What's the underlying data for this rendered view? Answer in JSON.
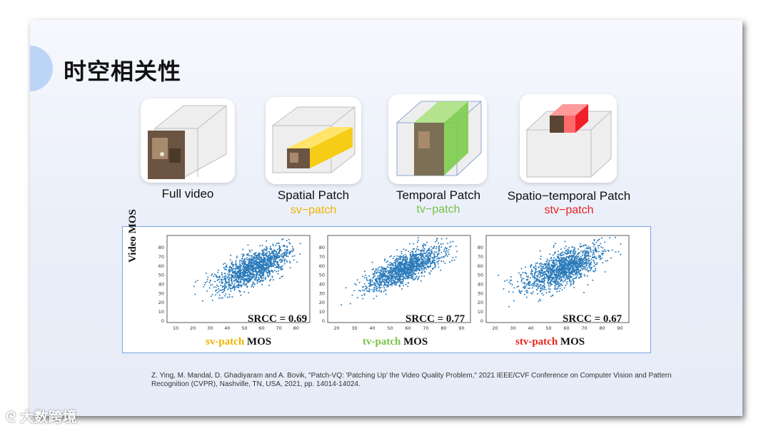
{
  "title": "时空相关性",
  "patches": [
    {
      "caption": "Full video",
      "sub": ""
    },
    {
      "caption": "Spatial Patch",
      "sub": "sv−patch",
      "sub_color": "#f0b400"
    },
    {
      "caption": "Temporal Patch",
      "sub": "tv−patch",
      "sub_color": "#7ac143"
    },
    {
      "caption": "Spatio−temporal Patch",
      "sub": "stv−patch",
      "sub_color": "#e8231d"
    }
  ],
  "chart_data": [
    {
      "type": "scatter",
      "ylabel": "Video MOS",
      "xlabel_prefix": "sv-patch",
      "xlabel_suffix": "MOS",
      "xlabel_color": "#f0b400",
      "srcc": "SRCC = 0.69",
      "xticks": [
        "10",
        "20",
        "30",
        "40",
        "50",
        "60",
        "70",
        "80"
      ],
      "xlim": [
        5,
        88
      ],
      "yticks": [
        "0",
        "10",
        "20",
        "30",
        "40",
        "50",
        "60",
        "70",
        "80"
      ],
      "ylim": [
        -2,
        93
      ],
      "color": "#2b7bbb",
      "r": 0.69
    },
    {
      "type": "scatter",
      "ylabel": "",
      "xlabel_prefix": "tv-patch",
      "xlabel_suffix": "MOS",
      "xlabel_color": "#7ac143",
      "srcc": "SRCC = 0.77",
      "xticks": [
        "20",
        "30",
        "40",
        "50",
        "60",
        "70",
        "80",
        "90"
      ],
      "xlim": [
        15,
        95
      ],
      "yticks": [
        "0",
        "10",
        "20",
        "30",
        "40",
        "50",
        "60",
        "70",
        "80"
      ],
      "ylim": [
        -2,
        93
      ],
      "color": "#2b7bbb",
      "r": 0.77
    },
    {
      "type": "scatter",
      "ylabel": "",
      "xlabel_prefix": "stv-patch",
      "xlabel_suffix": "MOS",
      "xlabel_color": "#e8231d",
      "srcc": "SRCC = 0.67",
      "xticks": [
        "20",
        "30",
        "40",
        "50",
        "60",
        "70",
        "80",
        "90"
      ],
      "xlim": [
        15,
        95
      ],
      "yticks": [
        "0",
        "10",
        "20",
        "30",
        "40",
        "50",
        "60",
        "70",
        "80"
      ],
      "ylim": [
        -2,
        93
      ],
      "color": "#2b7bbb",
      "r": 0.67
    }
  ],
  "reference_line1": "Z. Ying, M. Mandal, D. Ghadiyaram and A. Bovik, \"Patch-VQ: 'Patching Up' the Video Quality Problem,\" 2021 IEEE/CVF Conference on Computer Vision and Pattern",
  "reference_line2": "Recognition (CVPR), Nashville, TN, USA, 2021, pp. 14014-14024.",
  "watermark": "大数跨境"
}
